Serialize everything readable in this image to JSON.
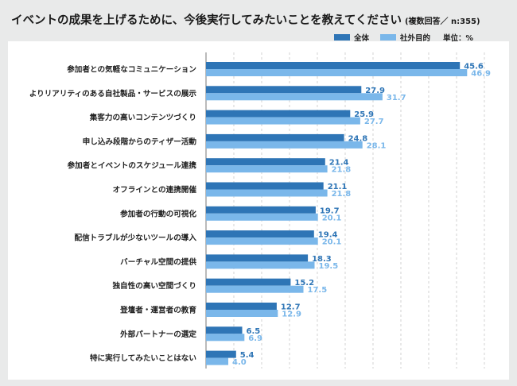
{
  "title": "イベントの成果を上げるために、今後実行してみたいことを教えてください",
  "title_note": "(複数回答／ n:355)",
  "legend": {
    "series_all": "全体",
    "series_purpose": "社外目的",
    "unit": "単位：%"
  },
  "colors": {
    "all": "#2e75b6",
    "purpose": "#7ab7ea",
    "frame": "#e9eaea"
  },
  "chart_data": {
    "type": "bar",
    "orientation": "horizontal",
    "title": "イベントの成果を上げるために、今後実行してみたいことを教えてください",
    "categories": [
      "参加者との気軽なコミュニケーション",
      "よりリアリティのある自社製品・サービスの展示",
      "集客力の高いコンテンツづくり",
      "申し込み段階からのティザー活動",
      "参加者とイベントのスケジュール連携",
      "オフラインとの連携開催",
      "参加者の行動の可視化",
      "配信トラブルが少ないツールの導入",
      "バーチャル空間の提供",
      "独自性の高い空間づくり",
      "登壇者・運営者の教育",
      "外部パートナーの選定",
      "特に実行してみたいことはない"
    ],
    "series": [
      {
        "name": "全体",
        "values": [
          45.6,
          27.9,
          25.9,
          24.8,
          21.4,
          21.1,
          19.7,
          19.4,
          18.3,
          15.2,
          12.7,
          6.5,
          5.4
        ]
      },
      {
        "name": "社外目的",
        "values": [
          46.9,
          31.7,
          27.7,
          28.1,
          21.8,
          21.8,
          20.1,
          20.1,
          19.5,
          17.5,
          12.9,
          6.9,
          4.0
        ]
      }
    ],
    "value_labels": [
      [
        "45.6",
        "46.9"
      ],
      [
        "27.9",
        "31.7"
      ],
      [
        "25.9",
        "27.7"
      ],
      [
        "24.8",
        "28.1"
      ],
      [
        "21.4",
        "21.8"
      ],
      [
        "21.1",
        "21.8"
      ],
      [
        "19.7",
        "20.1"
      ],
      [
        "19.4",
        "20.1"
      ],
      [
        "18.3",
        "19.5"
      ],
      [
        "15.2",
        "17.5"
      ],
      [
        "12.7",
        "12.9"
      ],
      [
        "6.5",
        "6.9"
      ],
      [
        "5.4",
        "4.0"
      ]
    ],
    "xlim": [
      0,
      50
    ],
    "grid": true
  }
}
